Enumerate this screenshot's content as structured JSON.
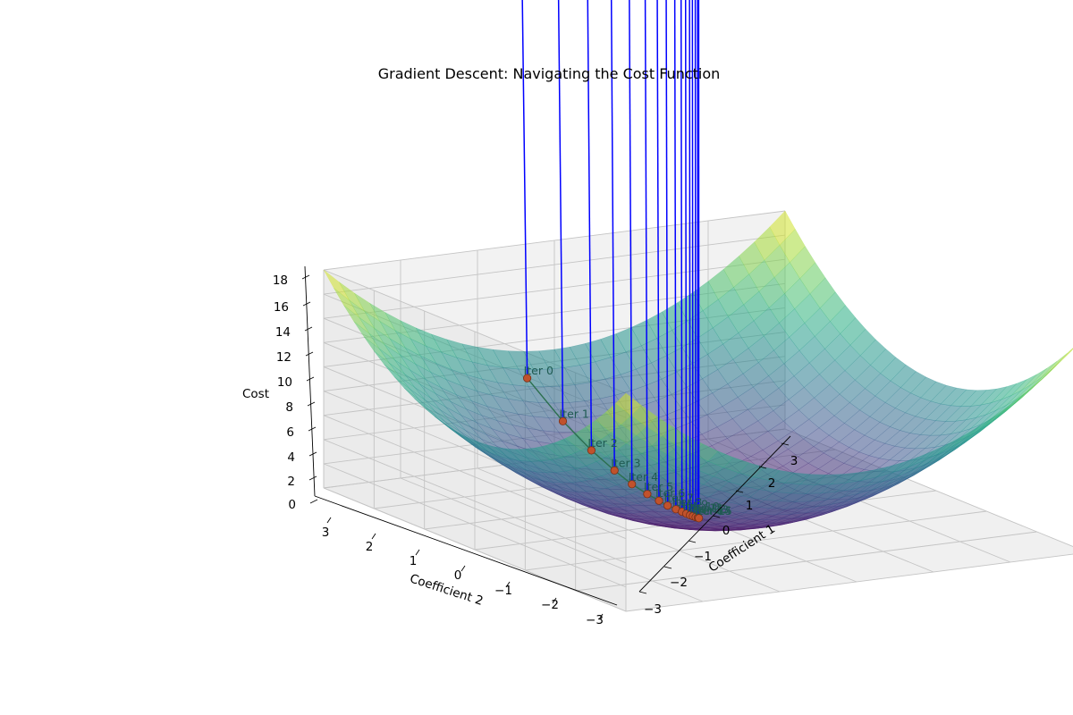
{
  "chart_data": {
    "type": "surface3d",
    "title": "Gradient Descent: Navigating the Cost Function",
    "xlabel": "Coefficient 1",
    "ylabel": "Coefficient 2",
    "zlabel": "Cost",
    "xlim": [
      -3,
      3
    ],
    "ylim": [
      -3,
      3
    ],
    "zlim": [
      0,
      18
    ],
    "x_ticks": [
      "−3",
      "−2",
      "−1",
      "0",
      "1",
      "2",
      "3"
    ],
    "y_ticks": [
      "−3",
      "−2",
      "−1",
      "0",
      "1",
      "2",
      "3"
    ],
    "z_ticks": [
      "0",
      "2",
      "4",
      "6",
      "8",
      "10",
      "12",
      "14",
      "16",
      "18"
    ],
    "surface": {
      "function": "x^2 + y^2",
      "colormap": "viridis",
      "alpha": 0.5
    },
    "gradient_path": {
      "color": "#c0522c",
      "points": [
        {
          "label": "Iter 0",
          "x": -0.55,
          "y": 2.7,
          "z": 7.59
        },
        {
          "label": "Iter 1",
          "x": -0.44,
          "y": 2.16,
          "z": 4.86
        },
        {
          "label": "Iter 2",
          "x": -0.35,
          "y": 1.73,
          "z": 3.11
        },
        {
          "label": "Iter 3",
          "x": -0.28,
          "y": 1.38,
          "z": 1.99
        },
        {
          "label": "Iter 4",
          "x": -0.23,
          "y": 1.11,
          "z": 1.27
        },
        {
          "label": "Iter 5",
          "x": -0.18,
          "y": 0.88,
          "z": 0.81
        },
        {
          "label": "Iter 6",
          "x": -0.14,
          "y": 0.71,
          "z": 0.52
        },
        {
          "label": "Iter 7",
          "x": -0.12,
          "y": 0.57,
          "z": 0.33
        },
        {
          "label": "Iter 8",
          "x": -0.09,
          "y": 0.45,
          "z": 0.21
        },
        {
          "label": "Iter 9",
          "x": -0.07,
          "y": 0.36,
          "z": 0.14
        },
        {
          "label": "Iter 10",
          "x": -0.06,
          "y": 0.29,
          "z": 0.09
        },
        {
          "label": "Iter 11",
          "x": -0.05,
          "y": 0.23,
          "z": 0.06
        },
        {
          "label": "Iter 12",
          "x": -0.04,
          "y": 0.19,
          "z": 0.04
        },
        {
          "label": "Iter 13",
          "x": -0.03,
          "y": 0.15,
          "z": 0.02
        },
        {
          "label": "Iter 14",
          "x": -0.02,
          "y": 0.12,
          "z": 0.01
        },
        {
          "label": "Iter 15",
          "x": -0.02,
          "y": 0.1,
          "z": 0.01
        }
      ]
    },
    "gradient_lines_color": "#0000ff",
    "grid": true
  }
}
